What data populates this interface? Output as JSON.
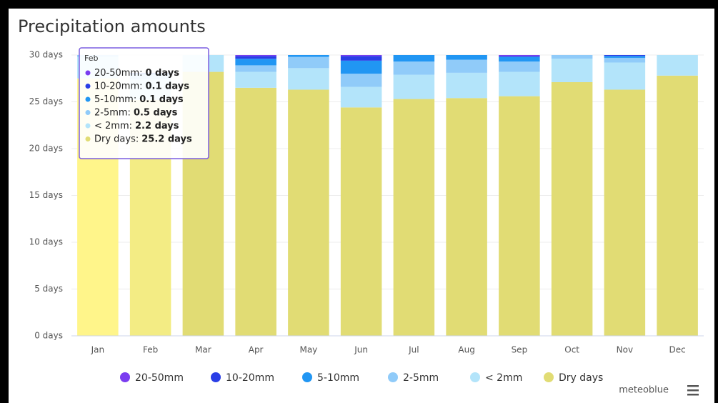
{
  "chart_data": {
    "type": "stacked_bar",
    "title": "Precipitation amounts",
    "categories": [
      "Jan",
      "Feb",
      "Mar",
      "Apr",
      "May",
      "Jun",
      "Jul",
      "Aug",
      "Sep",
      "Oct",
      "Nov",
      "Dec"
    ],
    "series": [
      {
        "name": "20-50mm",
        "color": "#7a3cf0",
        "values": [
          0.1,
          0,
          0,
          0.1,
          0.2,
          0.1,
          0.2,
          0.1,
          0.1,
          0,
          0,
          0
        ]
      },
      {
        "name": "10-20mm",
        "color": "#2a3ee6",
        "values": [
          0.2,
          0.1,
          0.1,
          0.3,
          0.5,
          0.5,
          0.5,
          0.4,
          0.1,
          0.2,
          0.1,
          0
        ]
      },
      {
        "name": "5-10mm",
        "color": "#2196f3",
        "values": [
          0.3,
          0.1,
          0.1,
          0.7,
          0.5,
          1.4,
          1.0,
          1.0,
          0.5,
          0.4,
          0.2,
          0.2
        ]
      },
      {
        "name": "2-5mm",
        "color": "#90cbf9",
        "values": [
          0.6,
          0.5,
          0.4,
          0.7,
          1.2,
          1.4,
          1.4,
          1.4,
          1.1,
          0.8,
          0.5,
          0.4
        ]
      },
      {
        "name": "< 2mm",
        "color": "#b3e4fa",
        "values": [
          2.3,
          2.2,
          2.3,
          1.7,
          2.3,
          2.2,
          2.6,
          2.7,
          2.6,
          2.5,
          2.9,
          2.6
        ]
      },
      {
        "name": "Dry days",
        "color": "#e1dc74",
        "colors": [
          "#fff58a",
          "#f3ec84",
          "#e1dc74",
          "#e1dc74",
          "#e1dc74",
          "#e1dc74",
          "#e1dc74",
          "#e1dc74",
          "#e1dc74",
          "#e1dc74",
          "#e1dc74",
          "#e1dc74"
        ],
        "values": [
          27.5,
          25.2,
          28.2,
          26.5,
          26.3,
          24.4,
          25.3,
          25.4,
          25.6,
          27.1,
          26.3,
          27.8
        ]
      }
    ],
    "ylim": [
      0,
      30
    ],
    "yticks": [
      {
        "value": 0,
        "label": "0 days"
      },
      {
        "value": 5,
        "label": "5 days"
      },
      {
        "value": 10,
        "label": "10 days"
      },
      {
        "value": 15,
        "label": "15 days"
      },
      {
        "value": 20,
        "label": "20 days"
      },
      {
        "value": 25,
        "label": "25 days"
      },
      {
        "value": 30,
        "label": "30 days"
      }
    ],
    "grid": true,
    "legend": "bottom",
    "credit": "meteoblue",
    "tooltip": {
      "title": "Feb",
      "items": [
        {
          "label": "20-50mm:",
          "value": "0 days"
        },
        {
          "label": "10-20mm:",
          "value": "0.1 days"
        },
        {
          "label": "5-10mm:",
          "value": "0.1 days"
        },
        {
          "label": "2-5mm:",
          "value": "0.5 days"
        },
        {
          "label": "< 2mm:",
          "value": "2.2 days"
        },
        {
          "label": "Dry days:",
          "value": "25.2 days"
        }
      ]
    }
  }
}
